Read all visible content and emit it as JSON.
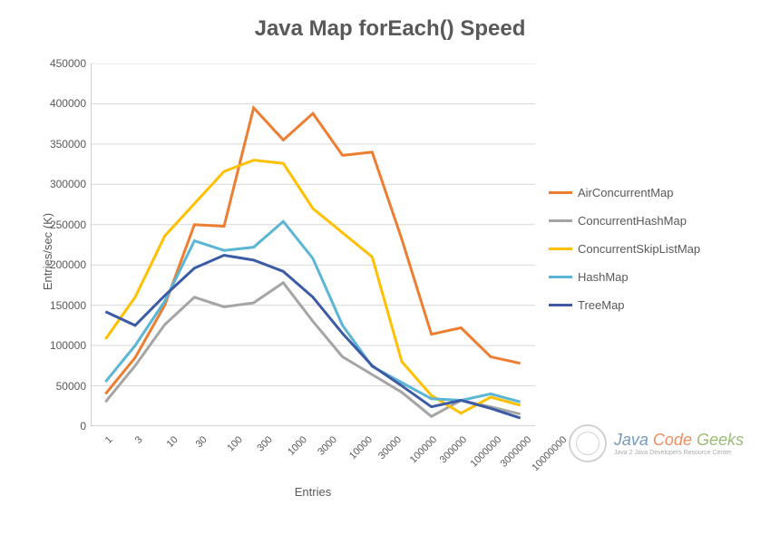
{
  "title": "Java Map forEach() Speed",
  "axes": {
    "x": {
      "label": "Entries",
      "categories": [
        "1",
        "3",
        "10",
        "30",
        "100",
        "300",
        "1000",
        "3000",
        "10000",
        "30000",
        "100000",
        "300000",
        "1000000",
        "3000000",
        "10000000"
      ],
      "tick_fontsize": 11,
      "tick_rotation_deg": -45
    },
    "y": {
      "label": "Entries/sec (K)",
      "min": 0,
      "max": 450000,
      "tick_step": 50000,
      "ticks": [
        "0",
        "50000",
        "100000",
        "150000",
        "200000",
        "250000",
        "300000",
        "350000",
        "400000",
        "450000"
      ],
      "tick_fontsize": 12
    }
  },
  "grid_color": "#d9d9d9",
  "axis_line_color": "#a6a6a6",
  "background_color": "#ffffff",
  "title_fontsize": 24,
  "title_color": "#595959",
  "label_color": "#595959",
  "line_width": 3,
  "series": [
    {
      "name": "AirConcurrentMap",
      "color": "#ed7d31",
      "values": [
        40000,
        85000,
        150000,
        250000,
        248000,
        395000,
        355000,
        388000,
        336000,
        340000,
        232000,
        114000,
        122000,
        86000,
        78000
      ]
    },
    {
      "name": "ConcurrentHashMap",
      "color": "#a5a5a5",
      "values": [
        30000,
        75000,
        126000,
        160000,
        148000,
        153000,
        178000,
        130000,
        86000,
        64000,
        42000,
        12000,
        32000,
        24000,
        15000
      ]
    },
    {
      "name": "ConcurrentSkipListMap",
      "color": "#ffc000",
      "values": [
        108000,
        160000,
        236000,
        276000,
        316000,
        330000,
        326000,
        270000,
        240000,
        210000,
        80000,
        38000,
        16000,
        36000,
        26000
      ]
    },
    {
      "name": "HashMap",
      "color": "#5bb5d5",
      "values": [
        55000,
        100000,
        155000,
        230000,
        218000,
        222000,
        254000,
        208000,
        125000,
        74000,
        54000,
        34000,
        32000,
        40000,
        30000
      ]
    },
    {
      "name": "TreeMap",
      "color": "#3b5ba5",
      "values": [
        142000,
        125000,
        162000,
        196000,
        212000,
        206000,
        192000,
        160000,
        115000,
        75000,
        50000,
        24000,
        32000,
        22000,
        10000
      ]
    }
  ],
  "legend": {
    "position": "right",
    "fontsize": 13
  },
  "watermark": {
    "brand_java": "Java",
    "brand_code": "Code",
    "brand_geeks": "Geeks",
    "subtitle": "Java 2 Java Developers Resource Center"
  }
}
